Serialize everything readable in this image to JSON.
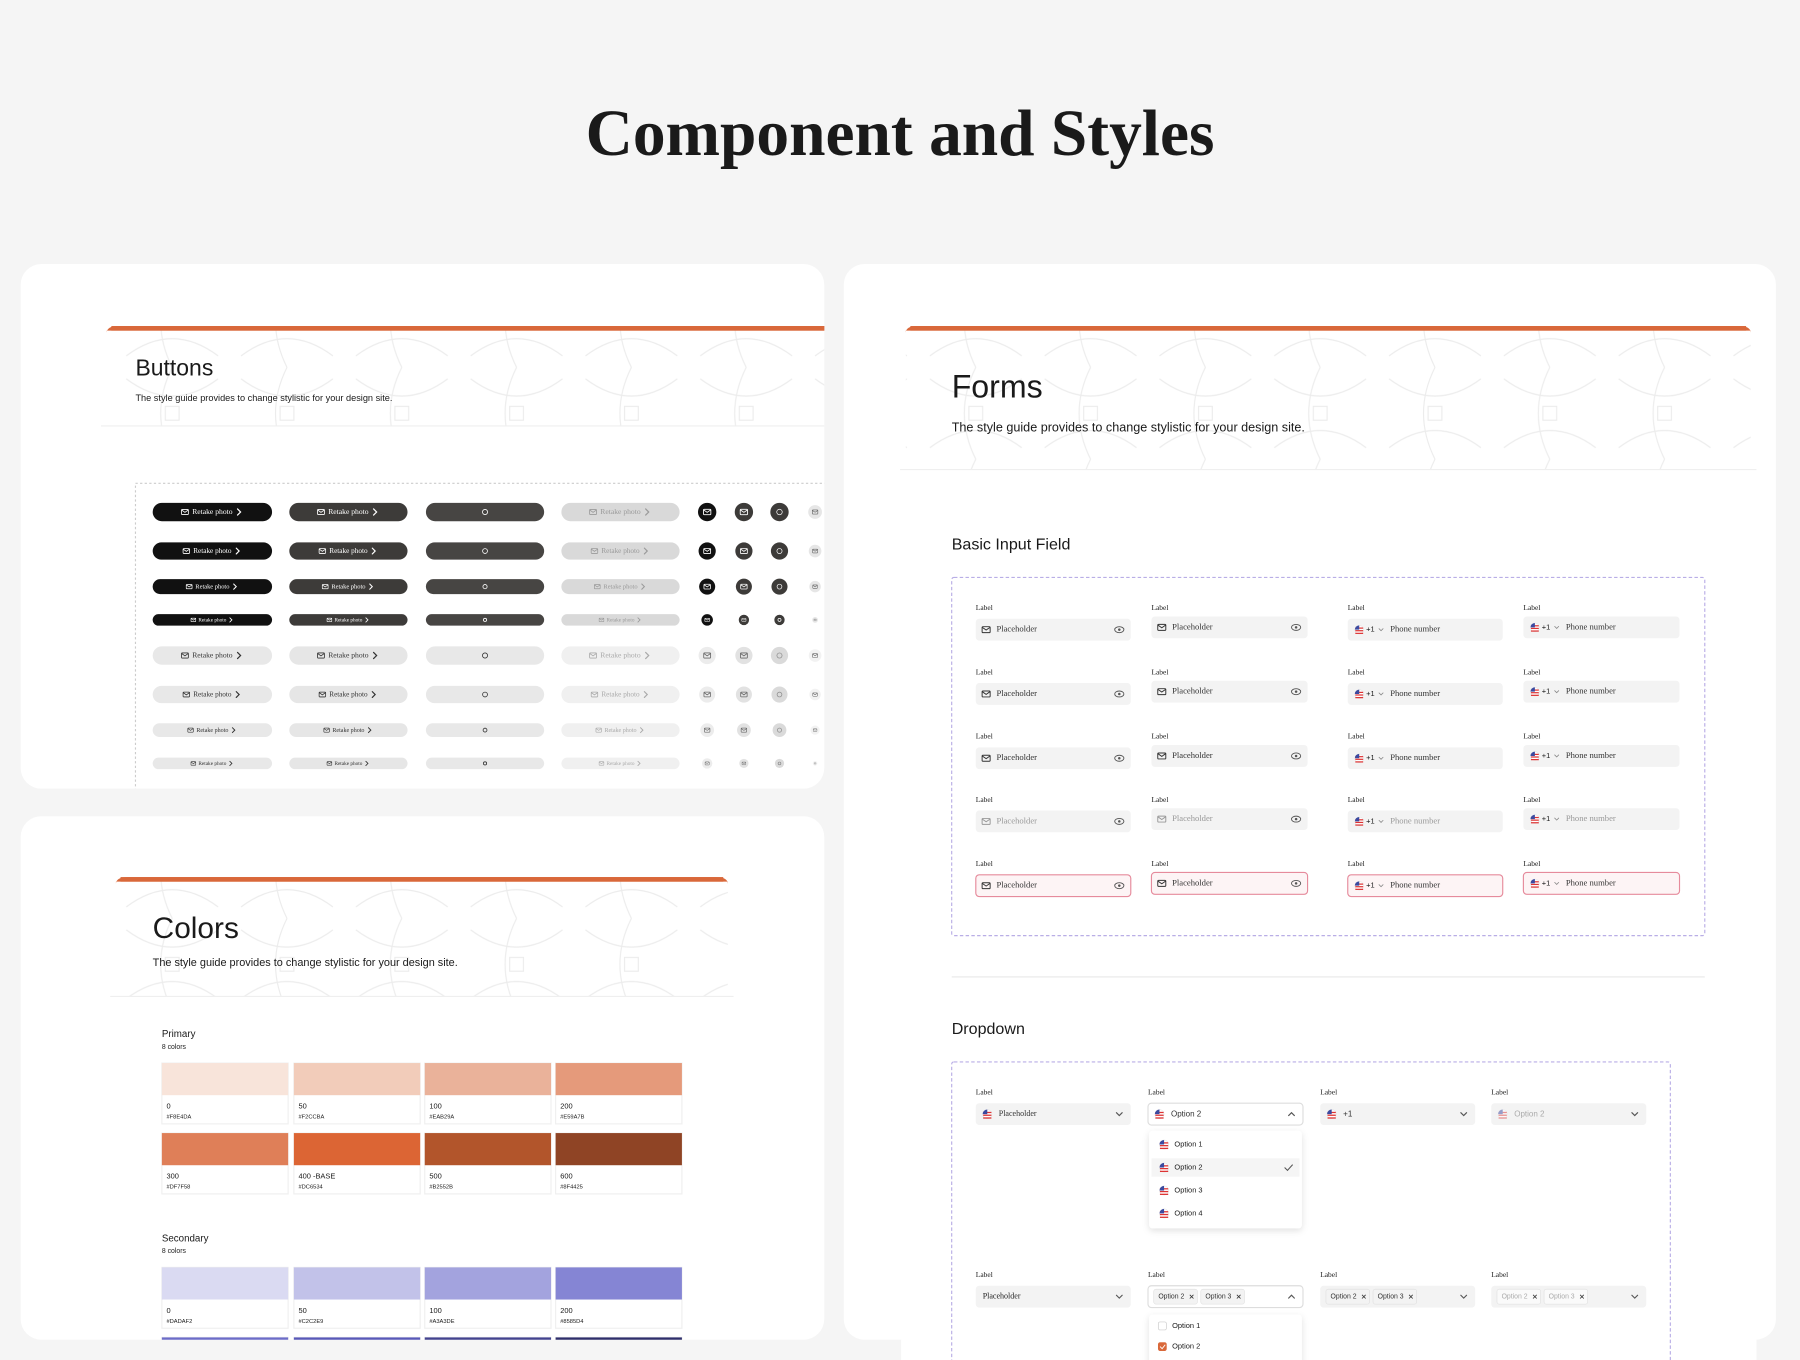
{
  "header": {
    "title": "Component and Styles"
  },
  "buttons": {
    "title": "Buttons",
    "subtitle": "The style guide provides to change stylistic for your design site.",
    "button_label": "Retake photo"
  },
  "colors": {
    "title": "Colors",
    "subtitle": "The style guide provides to change stylistic for your design site.",
    "groups": [
      {
        "name": "Primary",
        "count": "8 colors",
        "swatches": [
          {
            "name": "0",
            "hex": "#F8E4DA"
          },
          {
            "name": "50",
            "hex": "#F2CCBA"
          },
          {
            "name": "100",
            "hex": "#EAB29A"
          },
          {
            "name": "200",
            "hex": "#E59A7B"
          },
          {
            "name": "300",
            "hex": "#DF7F58"
          },
          {
            "name": "400 -BASE",
            "hex": "#DC6534"
          },
          {
            "name": "500",
            "hex": "#B2552B"
          },
          {
            "name": "600",
            "hex": "#8F4425"
          }
        ]
      },
      {
        "name": "Secondary",
        "count": "8 colors",
        "swatches": [
          {
            "name": "0",
            "hex": "#DADAF2"
          },
          {
            "name": "50",
            "hex": "#C2C2E9"
          },
          {
            "name": "100",
            "hex": "#A3A3DE"
          },
          {
            "name": "200",
            "hex": "#8585D4"
          },
          {
            "color": "#6C6CC8"
          },
          {
            "color": "#5858B8"
          },
          {
            "color": "#43438F"
          },
          {
            "color": "#2E2E6B"
          }
        ]
      }
    ]
  },
  "forms": {
    "title": "Forms",
    "subtitle": "The style guide provides to change stylistic for your design site.",
    "basic_input": {
      "heading": "Basic Input Field",
      "label": "Label",
      "placeholder": "Placeholder",
      "phone_code": "+1",
      "phone_placeholder": "Phone number"
    },
    "dropdown": {
      "heading": "Dropdown",
      "label": "Label",
      "placeholder": "Placeholder",
      "selected": "Option 2",
      "phone_code": "+1",
      "options": [
        "Option 1",
        "Option 2",
        "Option 3",
        "Option 4"
      ],
      "chips": [
        "Option 2",
        "Option 3"
      ]
    }
  }
}
